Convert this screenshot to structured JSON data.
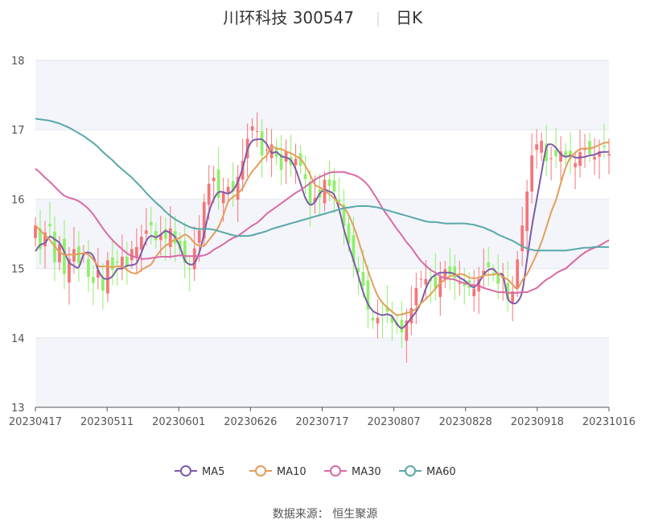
{
  "title": {
    "name": "川环科技 300547",
    "period": "日K"
  },
  "source": "数据来源： 恒生聚源",
  "colors": {
    "up": "#f5757a",
    "down": "#8ff06a",
    "MA5": "#7e5ba6",
    "MA10": "#e59e5a",
    "MA30": "#d96aa6",
    "MA60": "#5aa8a8",
    "band": "#f3f5fa",
    "grid": "#e3e6ee"
  },
  "chart_data": {
    "type": "candlestick",
    "ylim": [
      13,
      18
    ],
    "y_ticks": [
      "13",
      "14",
      "15",
      "16",
      "17",
      "18"
    ],
    "x_tick_labels": [
      "20230417",
      "20230511",
      "20230601",
      "20230626",
      "20230717",
      "20230807",
      "20230828",
      "20230918",
      "20231016"
    ],
    "trading_days": 120,
    "grid": true,
    "legend_position": "bottom",
    "legend": [
      "MA5",
      "MA10",
      "MA30",
      "MA60"
    ],
    "closes": [
      15.62,
      15.28,
      15.52,
      15.61,
      15.09,
      15.35,
      14.92,
      15.14,
      15.28,
      15.08,
      15.22,
      14.88,
      14.79,
      14.98,
      14.68,
      15.12,
      14.98,
      15.08,
      15.17,
      15.04,
      15.28,
      15.31,
      15.46,
      15.55,
      15.62,
      15.41,
      15.49,
      15.43,
      15.58,
      15.36,
      15.28,
      15.08,
      14.99,
      15.29,
      15.55,
      15.96,
      16.22,
      16.31,
      16.02,
      16.09,
      16.18,
      16.11,
      16.32,
      16.55,
      16.87,
      17.05,
      16.98,
      16.63,
      16.71,
      16.79,
      16.61,
      16.42,
      16.69,
      16.49,
      16.58,
      16.48,
      16.29,
      15.92,
      16.02,
      16.02,
      16.28,
      16.19,
      16.11,
      15.96,
      15.61,
      15.36,
      15.09,
      14.95,
      14.75,
      14.41,
      14.25,
      14.29,
      14.32,
      14.38,
      14.22,
      14.18,
      14.08,
      14.25,
      14.43,
      14.72,
      14.85,
      14.85,
      14.82,
      14.71,
      14.88,
      14.99,
      14.91,
      14.86,
      14.79,
      14.75,
      14.72,
      14.71,
      14.85,
      14.97,
      15.02,
      14.93,
      14.78,
      14.91,
      14.55,
      14.67,
      15.13,
      15.62,
      16.11,
      16.63,
      16.79,
      16.84,
      16.55,
      16.59,
      16.62,
      16.69,
      16.62,
      16.58,
      16.52,
      16.68,
      16.72,
      16.65,
      16.61,
      16.69,
      16.75,
      16.65
    ],
    "series": [
      {
        "name": "MA5",
        "values": [
          15.25,
          15.34,
          15.37,
          15.46,
          15.42,
          15.37,
          15.24,
          15.09,
          15.04,
          15.02,
          15.2,
          15.23,
          15.18,
          14.98,
          14.87,
          14.85,
          14.89,
          14.99,
          15.0,
          15.04,
          15.05,
          15.08,
          15.23,
          15.4,
          15.47,
          15.45,
          15.49,
          15.54,
          15.51,
          15.45,
          15.31,
          15.12,
          15.06,
          15.08,
          15.23,
          15.5,
          15.81,
          16.0,
          16.1,
          16.1,
          16.08,
          16.13,
          16.25,
          16.45,
          16.71,
          16.84,
          16.86,
          16.86,
          16.79,
          16.67,
          16.68,
          16.62,
          16.6,
          16.56,
          16.43,
          16.23,
          16.02,
          15.92,
          15.96,
          16.08,
          16.13,
          16.11,
          16.06,
          15.86,
          15.57,
          15.33,
          15.12,
          14.89,
          14.66,
          14.49,
          14.39,
          14.35,
          14.33,
          14.34,
          14.31,
          14.2,
          14.14,
          14.2,
          14.29,
          14.38,
          14.51,
          14.71,
          14.85,
          14.91,
          14.94,
          14.94,
          14.94,
          14.92,
          14.87,
          14.83,
          14.77,
          14.73,
          14.8,
          14.91,
          14.98,
          14.99,
          14.92,
          14.9,
          14.58,
          14.5,
          14.52,
          14.67,
          15.13,
          15.6,
          15.99,
          16.38,
          16.74,
          16.79,
          16.74,
          16.65,
          16.61,
          16.63,
          16.6,
          16.6,
          16.61,
          16.63,
          16.64,
          16.67,
          16.68,
          16.68
        ]
      },
      {
        "name": "MA10",
        "values": [
          15.62,
          15.55,
          15.48,
          15.41,
          15.32,
          15.24,
          15.2,
          15.2,
          15.2,
          15.21,
          15.22,
          15.2,
          15.13,
          15.04,
          15.03,
          15.03,
          15.02,
          15.03,
          15.03,
          14.98,
          14.94,
          14.93,
          14.98,
          15.02,
          15.06,
          15.17,
          15.26,
          15.33,
          15.37,
          15.42,
          15.44,
          15.49,
          15.45,
          15.37,
          15.33,
          15.33,
          15.41,
          15.5,
          15.6,
          15.77,
          15.96,
          16.03,
          16.08,
          16.16,
          16.29,
          16.4,
          16.48,
          16.57,
          16.63,
          16.75,
          16.73,
          16.72,
          16.69,
          16.66,
          16.62,
          16.58,
          16.48,
          16.35,
          16.21,
          16.17,
          16.12,
          16.07,
          16.01,
          15.94,
          15.88,
          15.77,
          15.61,
          15.41,
          15.18,
          14.97,
          14.78,
          14.61,
          14.51,
          14.44,
          14.38,
          14.33,
          14.34,
          14.36,
          14.38,
          14.42,
          14.5,
          14.56,
          14.63,
          14.71,
          14.79,
          14.84,
          14.89,
          14.9,
          14.92,
          14.91,
          14.87,
          14.86,
          14.87,
          14.9,
          14.91,
          14.91,
          14.93,
          14.88,
          14.84,
          14.77,
          14.71,
          14.83,
          14.92,
          15.06,
          15.21,
          15.38,
          15.59,
          15.81,
          15.99,
          16.23,
          16.45,
          16.6,
          16.67,
          16.72,
          16.73,
          16.73,
          16.75,
          16.78,
          16.81,
          16.82
        ]
      },
      {
        "name": "MA30",
        "values": [
          16.44,
          16.38,
          16.31,
          16.25,
          16.18,
          16.11,
          16.05,
          16.02,
          16.0,
          15.97,
          15.92,
          15.86,
          15.78,
          15.68,
          15.58,
          15.49,
          15.41,
          15.34,
          15.28,
          15.22,
          15.18,
          15.16,
          15.14,
          15.14,
          15.15,
          15.16,
          15.17,
          15.17,
          15.17,
          15.18,
          15.19,
          15.18,
          15.18,
          15.18,
          15.18,
          15.19,
          15.22,
          15.27,
          15.31,
          15.35,
          15.4,
          15.44,
          15.47,
          15.52,
          15.57,
          15.62,
          15.66,
          15.72,
          15.79,
          15.84,
          15.89,
          15.94,
          15.99,
          16.04,
          16.09,
          16.13,
          16.18,
          16.23,
          16.28,
          16.32,
          16.35,
          16.38,
          16.39,
          16.39,
          16.39,
          16.37,
          16.35,
          16.32,
          16.27,
          16.2,
          16.1,
          15.99,
          15.87,
          15.77,
          15.67,
          15.57,
          15.48,
          15.38,
          15.3,
          15.2,
          15.11,
          15.04,
          14.98,
          14.94,
          14.89,
          14.86,
          14.85,
          14.84,
          14.81,
          14.79,
          14.77,
          14.76,
          14.75,
          14.72,
          14.7,
          14.68,
          14.66,
          14.66,
          14.65,
          14.65,
          14.65,
          14.66,
          14.66,
          14.69,
          14.72,
          14.78,
          14.84,
          14.88,
          14.93,
          14.97,
          15.0,
          15.06,
          15.12,
          15.18,
          15.23,
          15.27,
          15.3,
          15.33,
          15.37,
          15.41
        ]
      },
      {
        "name": "MA60",
        "values": [
          17.16,
          17.15,
          17.14,
          17.13,
          17.11,
          17.09,
          17.06,
          17.03,
          16.99,
          16.95,
          16.91,
          16.86,
          16.81,
          16.75,
          16.68,
          16.62,
          16.56,
          16.49,
          16.43,
          16.37,
          16.31,
          16.24,
          16.17,
          16.09,
          16.02,
          15.95,
          15.89,
          15.82,
          15.76,
          15.71,
          15.67,
          15.63,
          15.6,
          15.58,
          15.57,
          15.57,
          15.57,
          15.56,
          15.54,
          15.52,
          15.5,
          15.48,
          15.47,
          15.47,
          15.47,
          15.48,
          15.5,
          15.52,
          15.54,
          15.57,
          15.59,
          15.61,
          15.63,
          15.65,
          15.67,
          15.69,
          15.71,
          15.73,
          15.75,
          15.77,
          15.79,
          15.81,
          15.83,
          15.85,
          15.87,
          15.88,
          15.89,
          15.9,
          15.9,
          15.9,
          15.89,
          15.88,
          15.86,
          15.84,
          15.82,
          15.8,
          15.78,
          15.76,
          15.74,
          15.72,
          15.7,
          15.68,
          15.67,
          15.67,
          15.66,
          15.65,
          15.65,
          15.65,
          15.65,
          15.65,
          15.64,
          15.63,
          15.61,
          15.59,
          15.56,
          15.53,
          15.49,
          15.46,
          15.43,
          15.4,
          15.36,
          15.32,
          15.29,
          15.27,
          15.26,
          15.26,
          15.26,
          15.26,
          15.26,
          15.26,
          15.26,
          15.27,
          15.28,
          15.29,
          15.3,
          15.3,
          15.31,
          15.31,
          15.31,
          15.31
        ]
      }
    ]
  }
}
